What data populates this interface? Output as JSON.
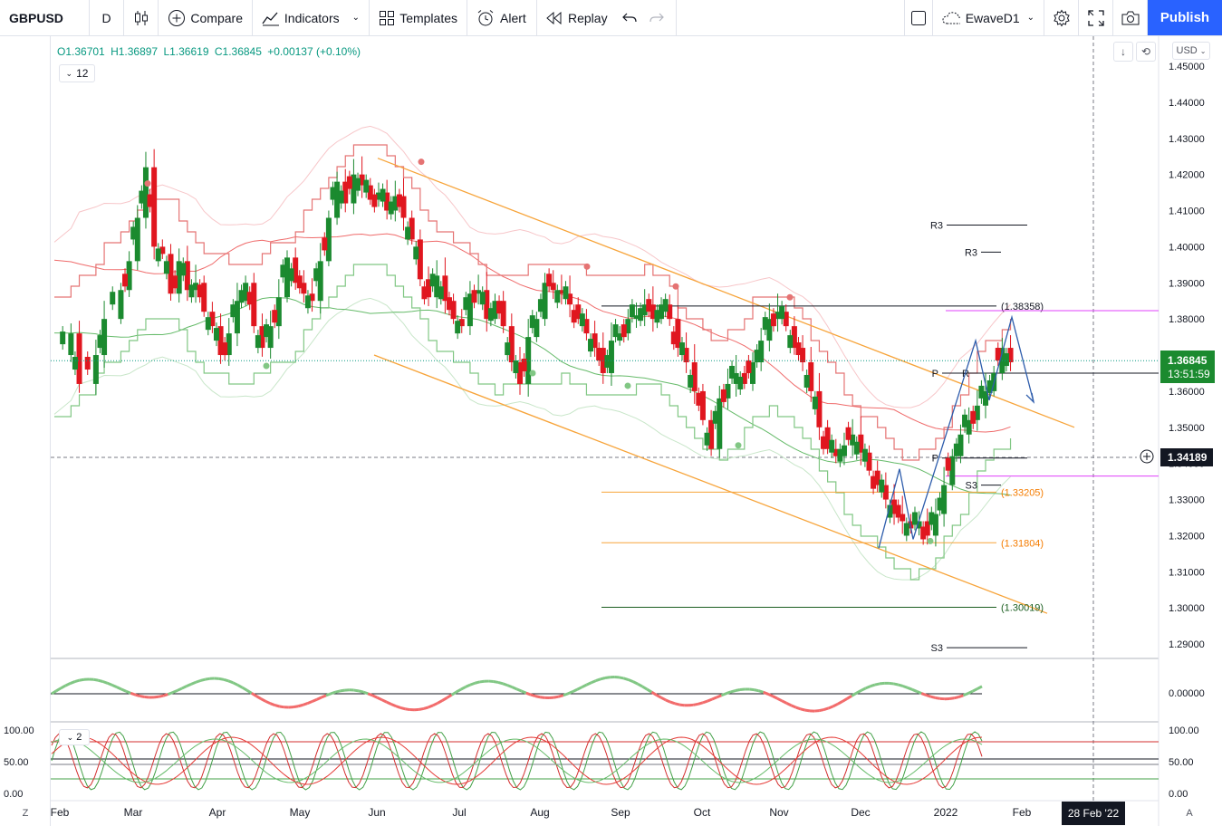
{
  "toolbar": {
    "symbol": "GBPUSD",
    "interval": "D",
    "compare": "Compare",
    "indicators": "Indicators",
    "templates": "Templates",
    "alert": "Alert",
    "replay": "Replay",
    "layout_name": "EwaveD1",
    "publish": "Publish"
  },
  "legend": {
    "open": "O1.36701",
    "high": "H1.36897",
    "low": "L1.36619",
    "close": "C1.36845",
    "change": "+0.00137 (+0.10%)",
    "indicator_count": "12",
    "osc_count": "2"
  },
  "currency": "USD",
  "colors": {
    "up": "#089981",
    "down": "#f23645",
    "bull_candle": "#1b8a2f",
    "bear_candle": "#e0161f",
    "channel": "#f7a43a",
    "accent": "#2962ff"
  },
  "chart_data": {
    "type": "candlestick",
    "symbol": "GBPUSD",
    "timeframe": "D",
    "y_axis": {
      "ticks": [
        "1.45000",
        "1.44000",
        "1.43000",
        "1.42000",
        "1.41000",
        "1.40000",
        "1.39000",
        "1.38000",
        "1.37000",
        "1.36000",
        "1.35000",
        "1.34000",
        "1.33000",
        "1.32000",
        "1.31000",
        "1.30000",
        "1.29000"
      ],
      "ylim": [
        1.285,
        1.455
      ]
    },
    "x_axis": {
      "ticks": [
        "Feb",
        "Mar",
        "Apr",
        "May",
        "Jun",
        "Jul",
        "Aug",
        "Sep",
        "Oct",
        "Nov",
        "Dec",
        "2022",
        "Feb"
      ],
      "cursor_label": "28 Feb '22"
    },
    "last_price": {
      "value": "1.36845",
      "countdown": "13:51:59"
    },
    "crosshair_price": "1.34189",
    "price_path": [
      [
        0,
        1.37
      ],
      [
        2,
        1.376
      ],
      [
        3,
        1.362
      ],
      [
        5,
        1.37
      ],
      [
        6,
        1.38
      ],
      [
        8,
        1.388
      ],
      [
        9,
        1.396
      ],
      [
        10,
        1.408
      ],
      [
        11,
        1.422
      ],
      [
        12,
        1.4
      ],
      [
        13,
        1.398
      ],
      [
        14,
        1.387
      ],
      [
        15,
        1.396
      ],
      [
        16,
        1.388
      ],
      [
        17,
        1.39
      ],
      [
        18,
        1.382
      ],
      [
        19,
        1.378
      ],
      [
        20,
        1.37
      ],
      [
        21,
        1.376
      ],
      [
        22,
        1.385
      ],
      [
        23,
        1.39
      ],
      [
        24,
        1.378
      ],
      [
        25,
        1.372
      ],
      [
        26,
        1.378
      ],
      [
        27,
        1.386
      ],
      [
        28,
        1.397
      ],
      [
        29,
        1.39
      ],
      [
        30,
        1.387
      ],
      [
        31,
        1.385
      ],
      [
        32,
        1.396
      ],
      [
        33,
        1.408
      ],
      [
        34,
        1.418
      ],
      [
        35,
        1.412
      ],
      [
        36,
        1.42
      ],
      [
        37,
        1.417
      ],
      [
        38,
        1.413
      ],
      [
        39,
        1.415
      ],
      [
        40,
        1.41
      ],
      [
        41,
        1.414
      ],
      [
        42,
        1.408
      ],
      [
        43,
        1.402
      ],
      [
        44,
        1.391
      ],
      [
        45,
        1.386
      ],
      [
        46,
        1.392
      ],
      [
        47,
        1.385
      ],
      [
        48,
        1.38
      ],
      [
        49,
        1.378
      ],
      [
        50,
        1.387
      ],
      [
        51,
        1.388
      ],
      [
        52,
        1.38
      ],
      [
        53,
        1.385
      ],
      [
        54,
        1.378
      ],
      [
        55,
        1.368
      ],
      [
        56,
        1.362
      ],
      [
        57,
        1.375
      ],
      [
        58,
        1.38
      ],
      [
        59,
        1.39
      ],
      [
        60,
        1.388
      ],
      [
        61,
        1.387
      ],
      [
        62,
        1.384
      ],
      [
        63,
        1.38
      ],
      [
        64,
        1.376
      ],
      [
        65,
        1.372
      ],
      [
        66,
        1.365
      ],
      [
        67,
        1.374
      ],
      [
        68,
        1.376
      ],
      [
        69,
        1.38
      ],
      [
        70,
        1.381
      ],
      [
        71,
        1.384
      ],
      [
        72,
        1.38
      ],
      [
        73,
        1.384
      ],
      [
        74,
        1.38
      ],
      [
        75,
        1.372
      ],
      [
        76,
        1.368
      ],
      [
        77,
        1.36
      ],
      [
        78,
        1.352
      ],
      [
        79,
        1.344
      ],
      [
        80,
        1.358
      ],
      [
        81,
        1.362
      ],
      [
        82,
        1.365
      ],
      [
        83,
        1.362
      ],
      [
        84,
        1.368
      ],
      [
        85,
        1.374
      ],
      [
        86,
        1.38
      ],
      [
        87,
        1.382
      ],
      [
        88,
        1.378
      ],
      [
        89,
        1.372
      ],
      [
        90,
        1.368
      ],
      [
        91,
        1.36
      ],
      [
        92,
        1.35
      ],
      [
        93,
        1.344
      ],
      [
        94,
        1.342
      ],
      [
        95,
        1.345
      ],
      [
        96,
        1.348
      ],
      [
        97,
        1.343
      ],
      [
        98,
        1.338
      ],
      [
        99,
        1.334
      ],
      [
        100,
        1.33
      ],
      [
        101,
        1.326
      ],
      [
        102,
        1.324
      ],
      [
        103,
        1.322
      ],
      [
        104,
        1.324
      ],
      [
        105,
        1.32
      ],
      [
        106,
        1.326
      ],
      [
        107,
        1.334
      ],
      [
        108,
        1.342
      ],
      [
        109,
        1.348
      ],
      [
        110,
        1.352
      ],
      [
        111,
        1.356
      ],
      [
        112,
        1.36
      ],
      [
        113,
        1.365
      ],
      [
        114,
        1.372
      ],
      [
        115,
        1.368
      ]
    ],
    "levels": [
      {
        "label": "(1.38358)",
        "value": 1.38358
      },
      {
        "label": "(1.33205)",
        "value": 1.33205
      },
      {
        "label": "(1.31804)",
        "value": 1.31804
      },
      {
        "label": "(1.30019)",
        "value": 1.30019
      }
    ],
    "pivots": [
      {
        "label": "R3",
        "value": 1.406
      },
      {
        "label": "R3",
        "value": 1.3985
      },
      {
        "label": "P",
        "value": 1.365
      },
      {
        "label": "R",
        "value": 1.365
      },
      {
        "label": "P",
        "value": 1.3415
      },
      {
        "label": "S3",
        "value": 1.334
      },
      {
        "label": "S3",
        "value": 1.289
      }
    ],
    "oscillator1": {
      "ticks": [
        "0.00000"
      ]
    },
    "oscillator2": {
      "ticks": [
        "100.00",
        "50.00",
        "0.00"
      ]
    }
  }
}
